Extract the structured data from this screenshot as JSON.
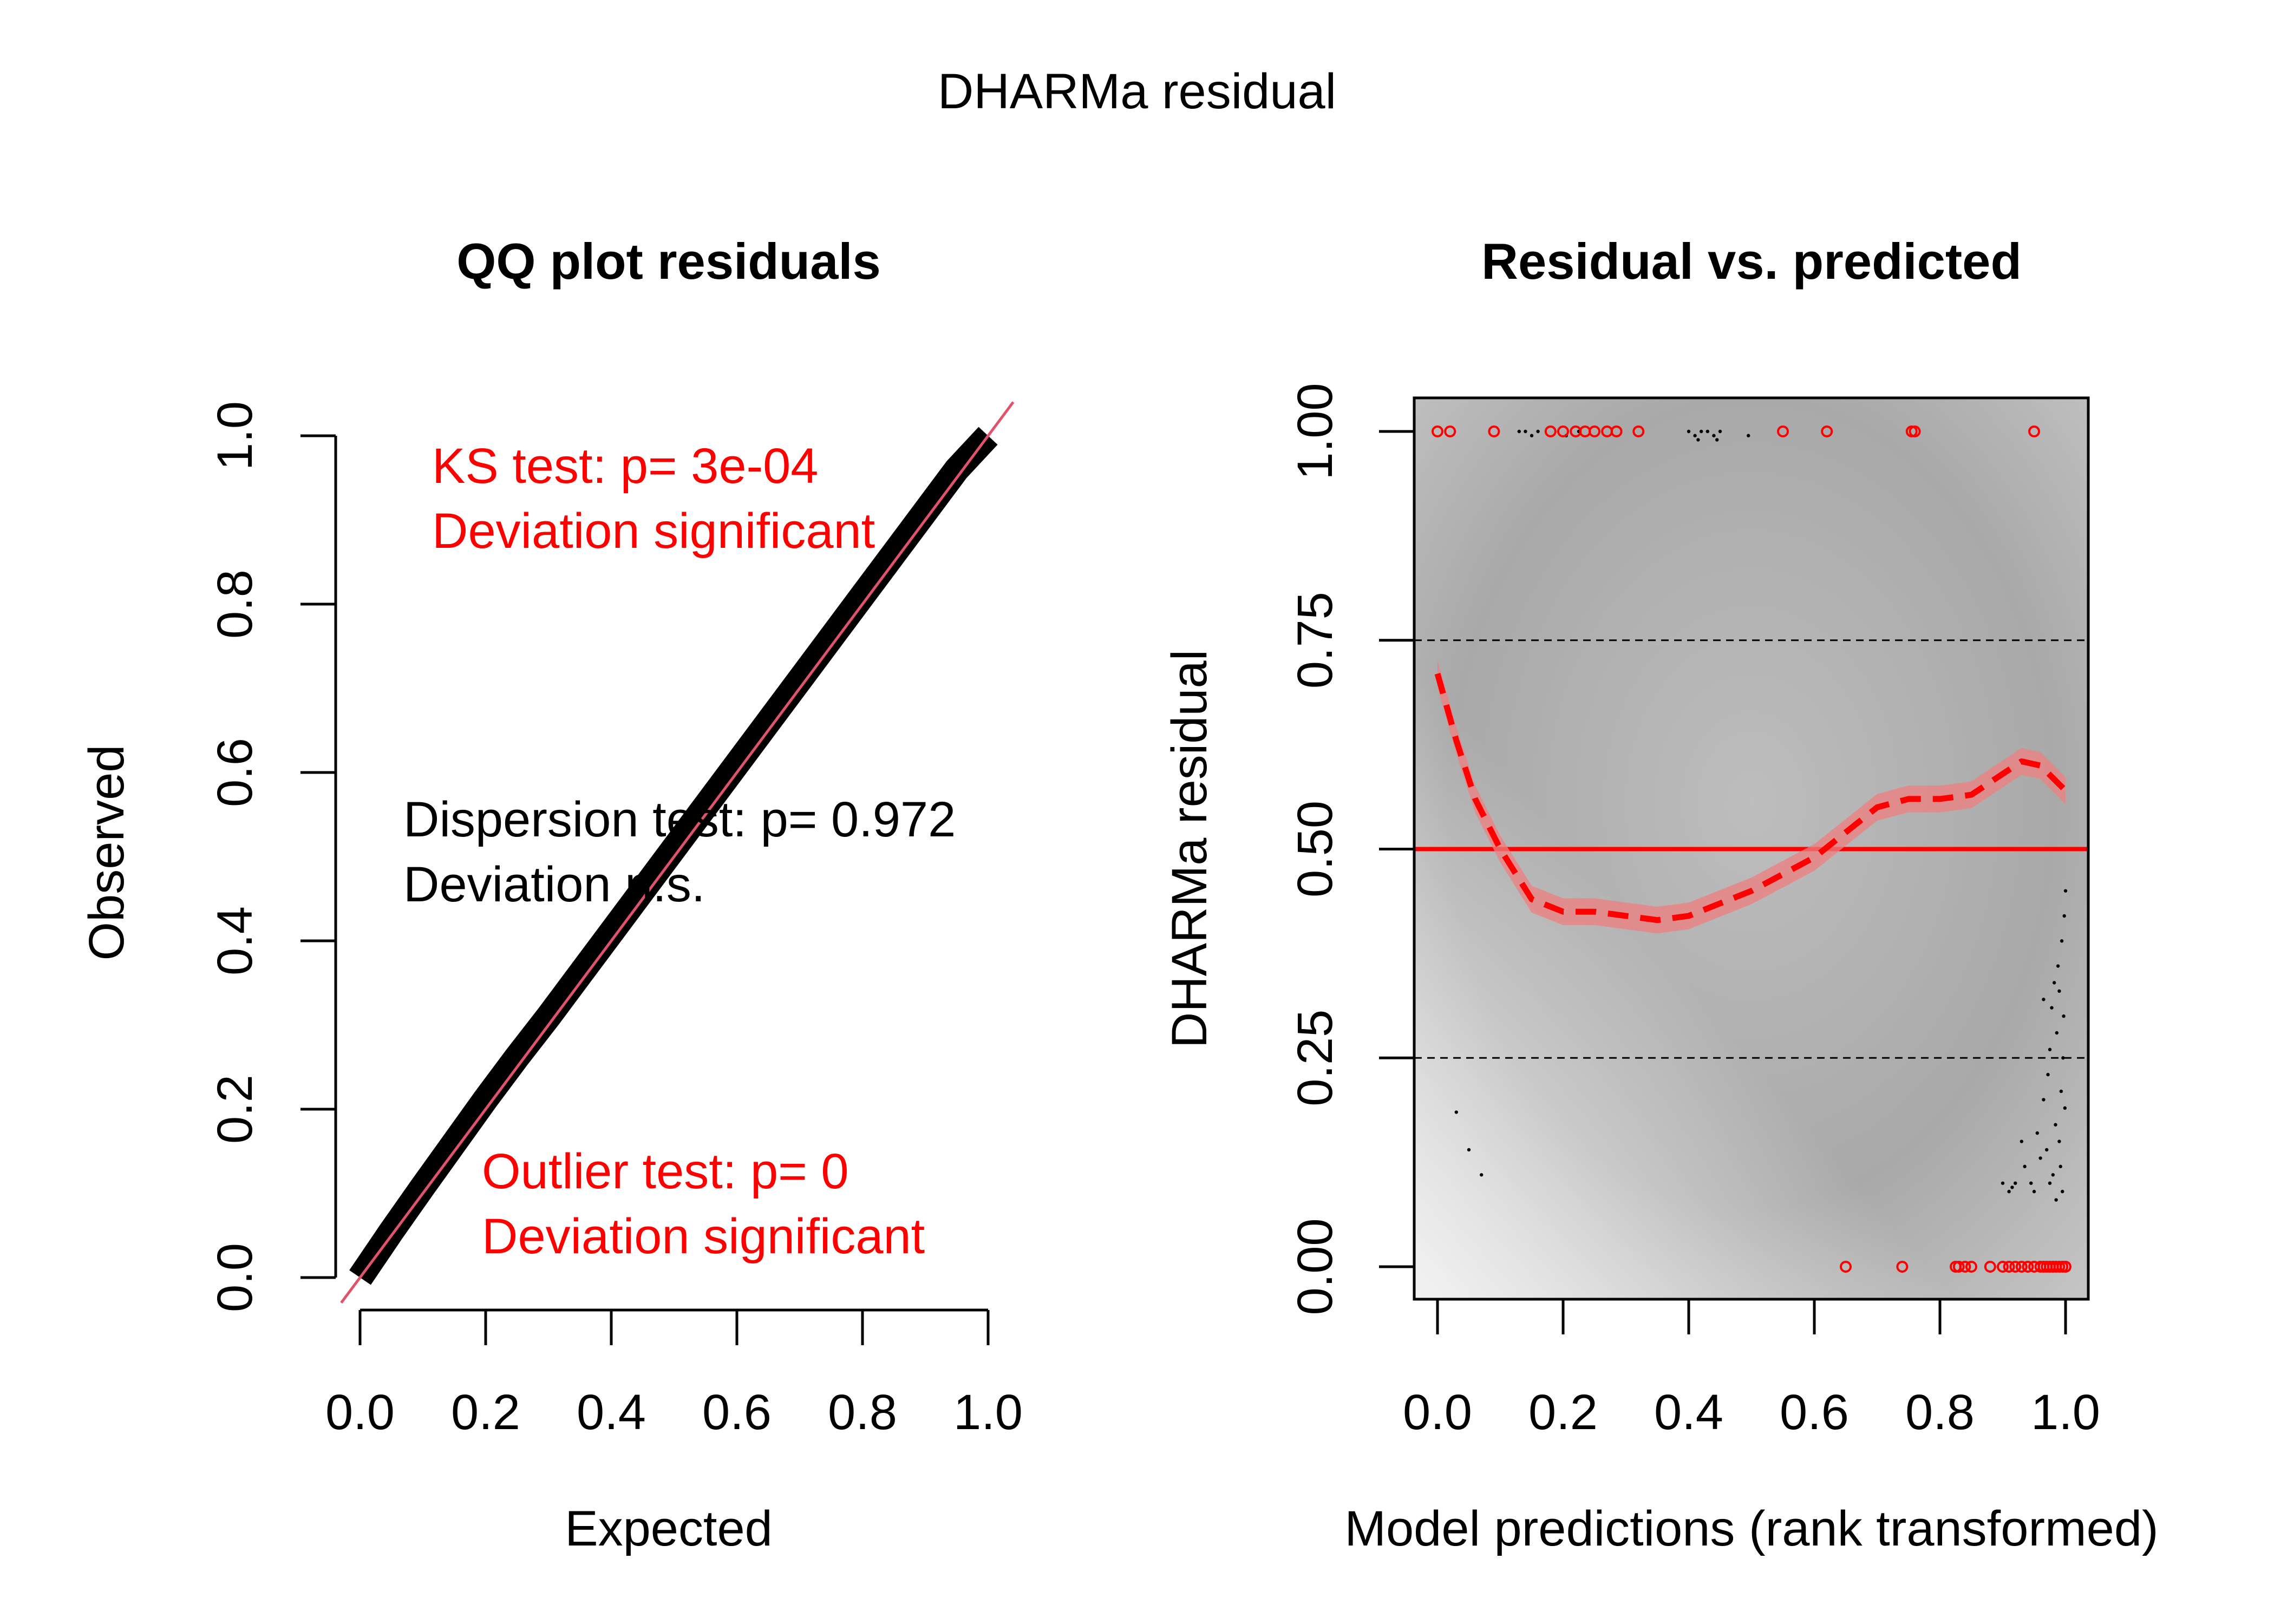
{
  "figure_title": "DHARMa residual",
  "colors": {
    "black": "#000000",
    "red": "#ff0000",
    "qq_line": "#df536b",
    "panel_gray": "#b4b4b4",
    "band": "#f07f7f"
  },
  "chart_data": [
    {
      "type": "scatter",
      "title": "QQ plot residuals",
      "xlabel": "Expected",
      "ylabel": "Observed",
      "xlim": [
        0,
        1
      ],
      "ylim": [
        0,
        1
      ],
      "x_ticks": [
        "0.0",
        "0.2",
        "0.4",
        "0.6",
        "0.8",
        "1.0"
      ],
      "y_ticks": [
        "0.0",
        "0.2",
        "0.4",
        "0.6",
        "0.8",
        "1.0"
      ],
      "reference_line": {
        "slope": 1,
        "intercept": 0
      },
      "series": [
        {
          "x": [
            0.0,
            0.05,
            0.1,
            0.15,
            0.2,
            0.25,
            0.3,
            0.35,
            0.4,
            0.45,
            0.5,
            0.55,
            0.6,
            0.65,
            0.7,
            0.75,
            0.8,
            0.85,
            0.9,
            0.95,
            1.0
          ],
          "y": [
            0.0,
            0.055,
            0.108,
            0.16,
            0.212,
            0.262,
            0.31,
            0.36,
            0.41,
            0.46,
            0.51,
            0.56,
            0.61,
            0.66,
            0.71,
            0.76,
            0.81,
            0.86,
            0.91,
            0.96,
            1.0
          ]
        }
      ],
      "annotations": {
        "ks": [
          "KS test: p= 3e-04",
          "Deviation  significant"
        ],
        "dispersion": [
          "Dispersion test: p= 0.972",
          "Deviation n.s."
        ],
        "outlier": [
          "Outlier test: p= 0",
          "Deviation  significant"
        ]
      }
    },
    {
      "type": "scatter",
      "title": "Residual vs. predicted",
      "xlabel": "Model predictions (rank transformed)",
      "ylabel": "DHARMa residual",
      "xlim": [
        0,
        1
      ],
      "ylim": [
        0,
        1
      ],
      "x_ticks": [
        "0.0",
        "0.2",
        "0.4",
        "0.6",
        "0.8",
        "1.0"
      ],
      "y_ticks": [
        "0.00",
        "0.25",
        "0.50",
        "0.75",
        "1.00"
      ],
      "hlines_dashed": [
        0.25,
        0.75
      ],
      "hline_solid": 0.5,
      "smooth": {
        "x": [
          0.0,
          0.03,
          0.06,
          0.1,
          0.15,
          0.2,
          0.25,
          0.3,
          0.35,
          0.4,
          0.45,
          0.5,
          0.55,
          0.6,
          0.65,
          0.7,
          0.75,
          0.8,
          0.85,
          0.9,
          0.93,
          0.96,
          1.0
        ],
        "y": [
          0.71,
          0.63,
          0.56,
          0.5,
          0.44,
          0.425,
          0.425,
          0.42,
          0.415,
          0.42,
          0.435,
          0.45,
          0.47,
          0.49,
          0.52,
          0.55,
          0.56,
          0.56,
          0.565,
          0.59,
          0.605,
          0.6,
          0.57
        ],
        "band_halfwidth": 0.016
      },
      "outliers_top": [
        0.0,
        0.02,
        0.09,
        0.18,
        0.2,
        0.22,
        0.235,
        0.25,
        0.27,
        0.285,
        0.32,
        0.55,
        0.62,
        0.755,
        0.76,
        0.95
      ],
      "outliers_bottom": [
        0.65,
        0.74,
        0.825,
        0.83,
        0.84,
        0.85,
        0.88,
        0.9,
        0.91,
        0.92,
        0.93,
        0.94,
        0.95,
        0.96,
        0.965,
        0.97,
        0.975,
        0.98,
        0.985,
        0.99,
        0.995,
        1.0
      ],
      "points": [
        [
          0.13,
          1.0
        ],
        [
          0.14,
          1.0
        ],
        [
          0.15,
          0.995
        ],
        [
          0.16,
          1.0
        ],
        [
          0.205,
          0.995
        ],
        [
          0.225,
          1.0
        ],
        [
          0.4,
          1.0
        ],
        [
          0.41,
          0.995
        ],
        [
          0.415,
          0.99
        ],
        [
          0.42,
          1.0
        ],
        [
          0.43,
          1.0
        ],
        [
          0.44,
          0.995
        ],
        [
          0.445,
          0.99
        ],
        [
          0.45,
          1.0
        ],
        [
          0.495,
          0.995
        ],
        [
          0.03,
          0.185
        ],
        [
          0.05,
          0.14
        ],
        [
          0.07,
          0.11
        ],
        [
          0.9,
          0.1
        ],
        [
          0.91,
          0.09
        ],
        [
          0.915,
          0.095
        ],
        [
          0.92,
          0.1
        ],
        [
          0.93,
          0.15
        ],
        [
          0.935,
          0.12
        ],
        [
          0.945,
          0.1
        ],
        [
          0.95,
          0.09
        ],
        [
          0.955,
          0.16
        ],
        [
          0.96,
          0.13
        ],
        [
          0.965,
          0.2
        ],
        [
          0.97,
          0.14
        ],
        [
          0.972,
          0.23
        ],
        [
          0.975,
          0.26
        ],
        [
          0.978,
          0.31
        ],
        [
          0.98,
          0.11
        ],
        [
          0.982,
          0.34
        ],
        [
          0.984,
          0.17
        ],
        [
          0.986,
          0.28
        ],
        [
          0.988,
          0.36
        ],
        [
          0.99,
          0.15
        ],
        [
          0.992,
          0.12
        ],
        [
          0.993,
          0.21
        ],
        [
          0.994,
          0.39
        ],
        [
          0.995,
          0.09
        ],
        [
          0.996,
          0.25
        ],
        [
          0.997,
          0.3
        ],
        [
          0.998,
          0.42
        ],
        [
          0.999,
          0.19
        ],
        [
          1.0,
          0.45
        ],
        [
          0.985,
          0.08
        ],
        [
          0.975,
          0.1
        ],
        [
          0.965,
          0.32
        ],
        [
          0.99,
          0.33
        ]
      ]
    }
  ]
}
